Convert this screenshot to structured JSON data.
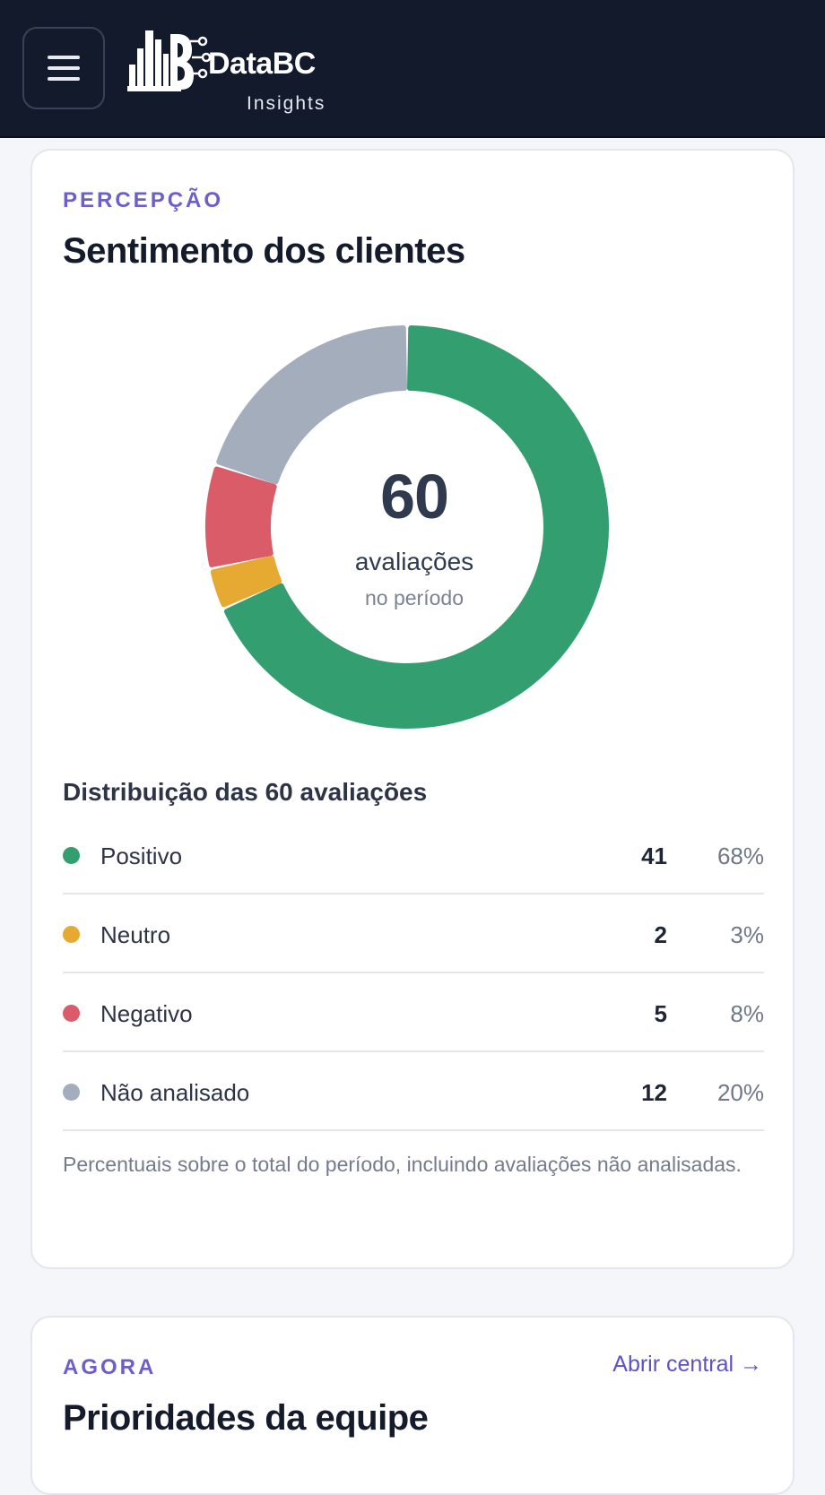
{
  "header": {
    "brand": "DataBC",
    "brand_sub": "Insights"
  },
  "sentiment_card": {
    "eyebrow": "PERCEPÇÃO",
    "title": "Sentimento dos clientes",
    "center_value": "60",
    "center_label": "avaliações",
    "center_sub": "no período",
    "distribution_title": "Distribuição das 60 avaliações",
    "rows": [
      {
        "label": "Positivo",
        "count": "41",
        "pct": "68%",
        "color": "#339e6f"
      },
      {
        "label": "Neutro",
        "count": "2",
        "pct": "3%",
        "color": "#e6aa32"
      },
      {
        "label": "Negativo",
        "count": "5",
        "pct": "8%",
        "color": "#da5c68"
      },
      {
        "label": "Não analisado",
        "count": "12",
        "pct": "20%",
        "color": "#a4adbc"
      }
    ],
    "note": "Percentuais sobre o total do período, incluindo avaliações não analisadas."
  },
  "chart_data": {
    "type": "pie",
    "categories": [
      "Positivo",
      "Neutro",
      "Negativo",
      "Não analisado"
    ],
    "values": [
      41,
      2,
      5,
      12
    ],
    "colors": [
      "#339e6f",
      "#e6aa32",
      "#da5c68",
      "#a4adbc"
    ],
    "title": "",
    "total": 60
  },
  "priorities_card": {
    "eyebrow": "AGORA",
    "title": "Prioridades da equipe",
    "link_label": "Abrir central →"
  }
}
